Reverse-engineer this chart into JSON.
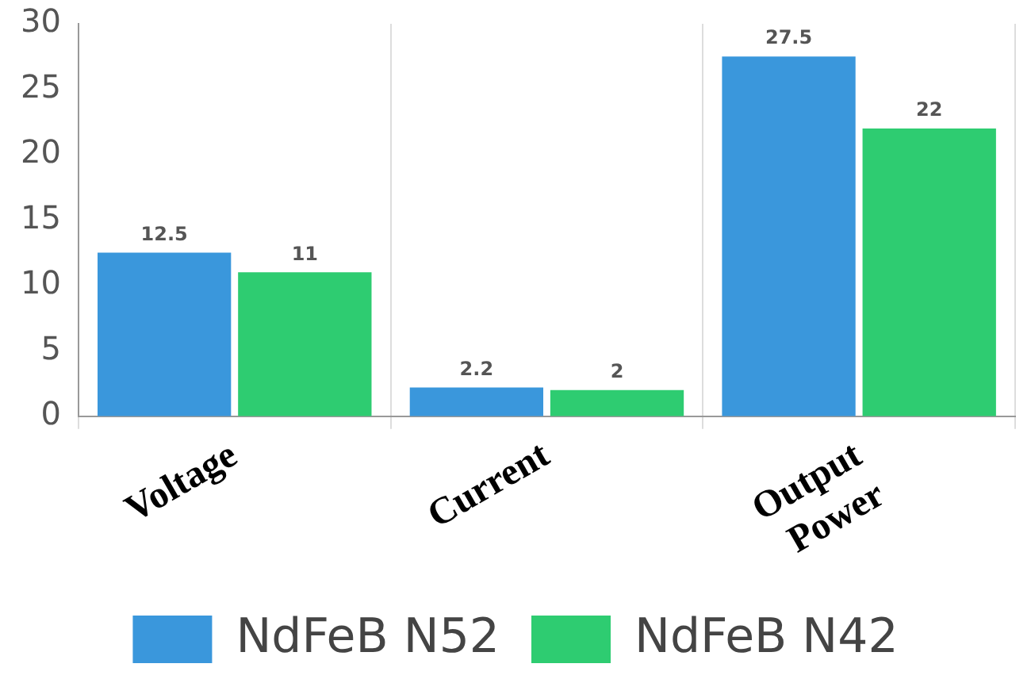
{
  "chart_data": {
    "type": "bar",
    "categories": [
      "Voltage",
      "Current",
      "Output Power"
    ],
    "series": [
      {
        "name": "NdFeB N52",
        "color": "#3a97dc",
        "values": [
          12.5,
          2.2,
          27.5
        ]
      },
      {
        "name": "NdFeB N42",
        "color": "#2ecc71",
        "values": [
          11,
          2,
          22
        ]
      }
    ],
    "ylim": [
      0,
      30
    ],
    "yticks": [
      0,
      5,
      10,
      15,
      20,
      25,
      30
    ],
    "grid": "x",
    "legend": "bottom",
    "data_labels": true
  }
}
